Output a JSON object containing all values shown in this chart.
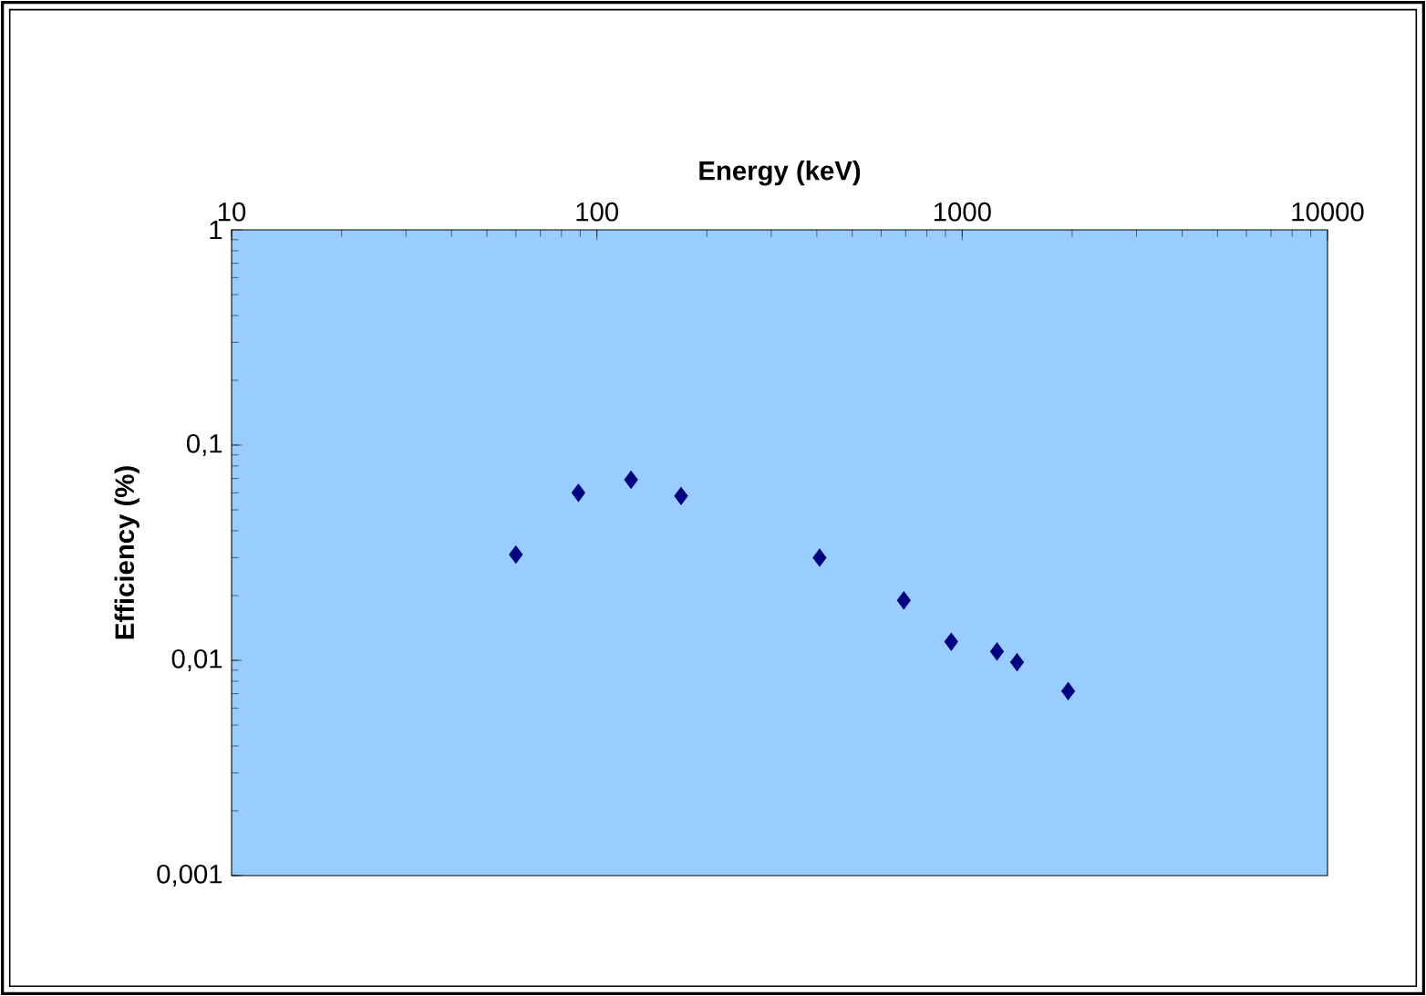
{
  "chart_data": {
    "type": "scatter",
    "xlabel": "Energy (keV)",
    "ylabel": "Efficiency (%)",
    "x": [
      60,
      89,
      124,
      170,
      407,
      692,
      933,
      1245,
      1413,
      1950
    ],
    "series": [
      {
        "color": "#000080",
        "values": [
          0.031,
          0.06,
          0.069,
          0.058,
          0.03,
          0.019,
          0.0122,
          0.011,
          0.0098,
          0.0072
        ]
      }
    ],
    "marker": "diamond",
    "log": "xy",
    "xlim": [
      10,
      10000
    ],
    "ylim": [
      0.001,
      1
    ],
    "xticks": [
      10,
      100,
      1000,
      10000
    ],
    "yticks": [
      {
        "value": 0.001,
        "label": "0,001"
      },
      {
        "value": 0.01,
        "label": "0,01"
      },
      {
        "value": 0.1,
        "label": "0,1"
      },
      1
    ]
  }
}
